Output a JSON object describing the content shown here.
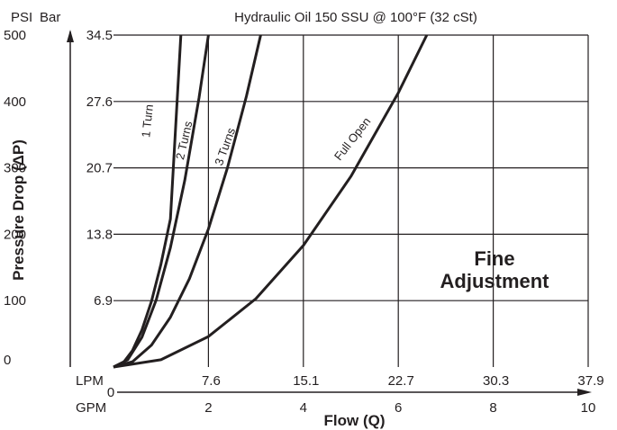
{
  "chart_data": {
    "type": "line",
    "title": "Hydraulic Oil 150 SSU @ 100°F (32 cSt)",
    "xlabel": "Flow (Q)",
    "ylabel": "Pressure Drop (ΔP)",
    "primary_x_unit": "GPM",
    "secondary_x_unit": "LPM",
    "primary_y_unit": "PSI",
    "secondary_y_unit": "Bar",
    "xlim": [
      0,
      10
    ],
    "ylim": [
      0,
      500
    ],
    "grid": true,
    "x_ticks_gpm": [
      "0",
      "2",
      "4",
      "6",
      "8",
      "10"
    ],
    "x_ticks_lpm": [
      "7.6",
      "15.1",
      "22.7",
      "30.3",
      "37.9"
    ],
    "y_ticks_psi": [
      "0",
      "100",
      "200",
      "300",
      "400",
      "500"
    ],
    "y_ticks_bar": [
      "6.9",
      "13.8",
      "20.7",
      "27.6",
      "34.5"
    ],
    "annotation": [
      "Fine",
      "Adjustment"
    ],
    "series": [
      {
        "name": "1 Turn",
        "x": [
          0,
          0.2,
          0.4,
          0.6,
          0.8,
          1.0,
          1.2,
          1.42
        ],
        "y": [
          0,
          6,
          25,
          56,
          99,
          155,
          223,
          500
        ]
      },
      {
        "name": "2 Turns",
        "x": [
          0,
          0.3,
          0.6,
          0.9,
          1.2,
          1.5,
          1.8,
          2.0
        ],
        "y": [
          0,
          11,
          45,
          101,
          180,
          281,
          405,
          500
        ]
      },
      {
        "name": "3 Turns",
        "x": [
          0,
          0.4,
          0.8,
          1.2,
          1.6,
          2.0,
          2.4,
          2.8,
          3.1
        ],
        "y": [
          0,
          8,
          33,
          75,
          133,
          208,
          300,
          408,
          500
        ]
      },
      {
        "name": "Full Open",
        "x": [
          0,
          1,
          2,
          3,
          4,
          5,
          6,
          6.6
        ],
        "y": [
          0,
          11,
          46,
          103,
          183,
          287,
          413,
          500
        ]
      }
    ],
    "curve_labels": [
      "1 Turn",
      "2 Turns",
      "3 Turns",
      "Full Open"
    ]
  }
}
